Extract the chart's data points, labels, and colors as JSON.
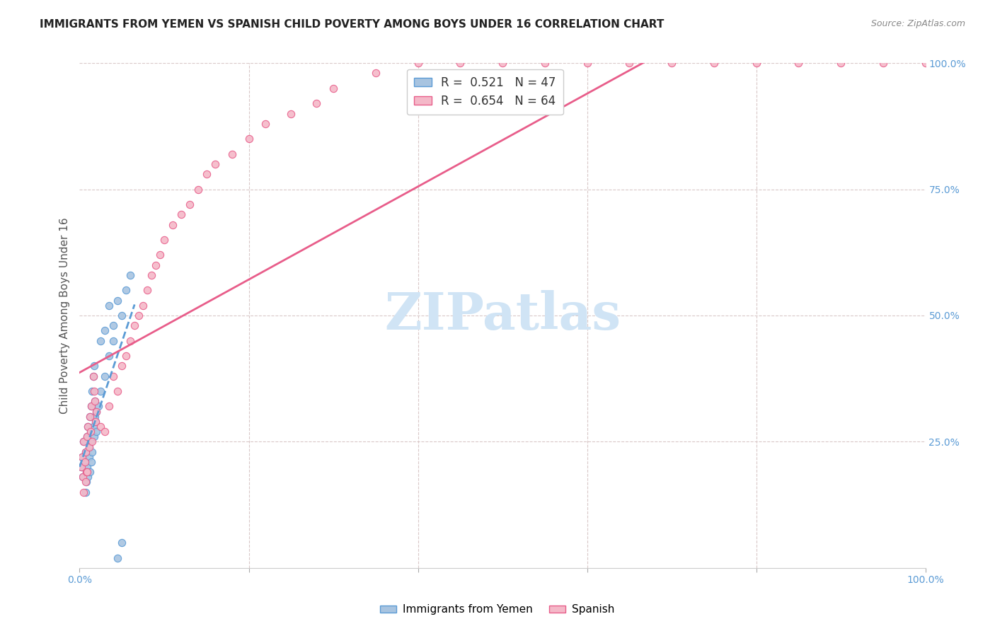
{
  "title": "IMMIGRANTS FROM YEMEN VS SPANISH CHILD POVERTY AMONG BOYS UNDER 16 CORRELATION CHART",
  "source": "Source: ZipAtlas.com",
  "ylabel": "Child Poverty Among Boys Under 16",
  "legend_label1": "Immigrants from Yemen",
  "legend_label2": "Spanish",
  "R1": 0.521,
  "N1": 47,
  "R2": 0.654,
  "N2": 64,
  "color1": "#a8c4e0",
  "color1_line": "#5b9bd5",
  "color2": "#f4b8c8",
  "color2_line": "#e85d8a",
  "watermark": "ZIPatlas",
  "watermark_color": "#d0e4f5",
  "background_color": "#ffffff",
  "scatter1_x": [
    0.002,
    0.003,
    0.004,
    0.005,
    0.006,
    0.007,
    0.008,
    0.009,
    0.01,
    0.011,
    0.012,
    0.013,
    0.014,
    0.015,
    0.016,
    0.017,
    0.018,
    0.019,
    0.02,
    0.025,
    0.03,
    0.035,
    0.04,
    0.045,
    0.05,
    0.055,
    0.06,
    0.007,
    0.008,
    0.009,
    0.01,
    0.011,
    0.012,
    0.013,
    0.014,
    0.015,
    0.016,
    0.017,
    0.018,
    0.02,
    0.022,
    0.025,
    0.03,
    0.035,
    0.04,
    0.045,
    0.05
  ],
  "scatter1_y": [
    0.2,
    0.22,
    0.18,
    0.25,
    0.21,
    0.23,
    0.19,
    0.26,
    0.28,
    0.24,
    0.3,
    0.27,
    0.32,
    0.35,
    0.38,
    0.4,
    0.33,
    0.29,
    0.31,
    0.45,
    0.47,
    0.52,
    0.48,
    0.53,
    0.5,
    0.55,
    0.58,
    0.15,
    0.17,
    0.2,
    0.18,
    0.22,
    0.19,
    0.25,
    0.21,
    0.23,
    0.28,
    0.26,
    0.3,
    0.27,
    0.32,
    0.35,
    0.38,
    0.42,
    0.45,
    0.02,
    0.05
  ],
  "scatter2_x": [
    0.002,
    0.003,
    0.004,
    0.005,
    0.006,
    0.007,
    0.008,
    0.009,
    0.01,
    0.011,
    0.012,
    0.013,
    0.014,
    0.015,
    0.016,
    0.017,
    0.018,
    0.019,
    0.02,
    0.025,
    0.03,
    0.035,
    0.04,
    0.045,
    0.05,
    0.055,
    0.06,
    0.065,
    0.07,
    0.075,
    0.08,
    0.085,
    0.09,
    0.095,
    0.1,
    0.11,
    0.12,
    0.13,
    0.14,
    0.15,
    0.16,
    0.18,
    0.2,
    0.22,
    0.25,
    0.28,
    0.3,
    0.35,
    0.4,
    0.45,
    0.5,
    0.55,
    0.6,
    0.65,
    0.7,
    0.75,
    0.8,
    0.85,
    0.9,
    0.95,
    1.0,
    0.005,
    0.007,
    0.009
  ],
  "scatter2_y": [
    0.2,
    0.22,
    0.18,
    0.25,
    0.21,
    0.23,
    0.19,
    0.26,
    0.28,
    0.24,
    0.3,
    0.27,
    0.32,
    0.25,
    0.38,
    0.35,
    0.33,
    0.29,
    0.31,
    0.28,
    0.27,
    0.32,
    0.38,
    0.35,
    0.4,
    0.42,
    0.45,
    0.48,
    0.5,
    0.52,
    0.55,
    0.58,
    0.6,
    0.62,
    0.65,
    0.68,
    0.7,
    0.72,
    0.75,
    0.78,
    0.8,
    0.82,
    0.85,
    0.88,
    0.9,
    0.92,
    0.95,
    0.98,
    1.0,
    1.0,
    1.0,
    1.0,
    1.0,
    1.0,
    1.0,
    1.0,
    1.0,
    1.0,
    1.0,
    1.0,
    1.0,
    0.15,
    0.17,
    0.19
  ],
  "xlim": [
    0.0,
    1.0
  ],
  "ylim": [
    0.0,
    1.0
  ]
}
